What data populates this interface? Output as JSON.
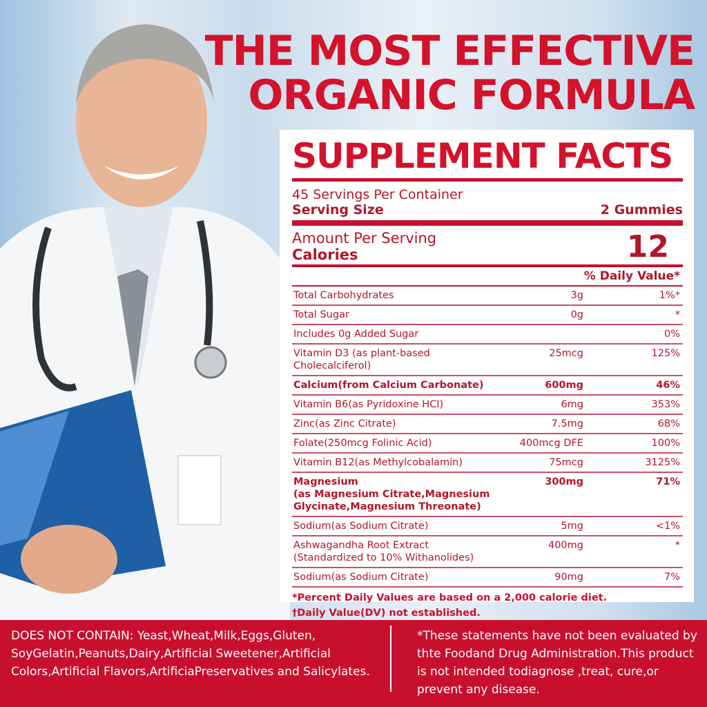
{
  "headline": [
    "THE MOST EFFECTIVE",
    "ORGANIC FORMULA"
  ],
  "panel": {
    "title": "SUPPLEMENT FACTS",
    "servings": "45 Servings Per Container",
    "serving_size_label": "Serving Size",
    "serving_size_value": "2 Gummies",
    "amount_label": "Amount Per Serving",
    "calories_label": "Calories",
    "calories_value": "12",
    "dv_header": "% Daily Value*",
    "rows": [
      {
        "name": "Total Carbohydrates",
        "amount": "3g",
        "dv": "1%*"
      },
      {
        "name": "Total Sugar",
        "amount": "0g",
        "dv": "*"
      },
      {
        "name": "Includes 0g Added Sugar",
        "amount": "",
        "dv": "0%"
      },
      {
        "name": "Vitamin D3 (as plant-based Cholecalciferol)",
        "amount": "25mcg",
        "dv": "125%"
      },
      {
        "name": "Calcium(from Calcium Carbonate)",
        "amount": "600mg",
        "dv": "46%",
        "bold": true
      },
      {
        "name": "Vitamin B6(as Pyridoxine HCl)",
        "amount": "6mg",
        "dv": "353%"
      },
      {
        "name": "Zinc(as Zinc Citrate)",
        "amount": "7.5mg",
        "dv": "68%"
      },
      {
        "name": "Folate(250mcg Folinic Acid)",
        "amount": "400mcg DFE",
        "dv": "100%"
      },
      {
        "name": "Vitamin B12(as Methylcobalamin)",
        "amount": "75mcg",
        "dv": "3125%"
      },
      {
        "name": "Magnesium\n(as Magnesium Citrate,Magnesium\nGlycinate,Magnesium Threonate)",
        "amount": "300mg",
        "dv": "71%",
        "bold": true
      },
      {
        "name": "Sodium(as Sodium Citrate)",
        "amount": "5mg",
        "dv": "<1%"
      },
      {
        "name": "Ashwagandha Root Extract\n(Standardized to 10% Withanolides)",
        "amount": "400mg",
        "dv": "*"
      },
      {
        "name": "Sodium(as Sodium Citrate)",
        "amount": "90mg",
        "dv": "7%"
      }
    ],
    "footnote1": "*Percent Daily Values are based on a 2,000 calorie diet.",
    "footnote2": "†Daily Value(DV) not established."
  },
  "band": {
    "left": "DOES NOT CONTAIN: Yeast,Wheat,Milk,Eggs,Gluten, SoyGelatin,Peanuts,Dairy,Artificial Sweetener,Artificial Colors,Artificial Flavors,ArtificiaPreservatives and Salicylates.",
    "right": "*These statements have not been evaluated by thte Foodand Drug Administration.This product is not intended todiagnose ,treat, cure,or prevent any disease."
  },
  "colors": {
    "brand_red": "#c8102e",
    "headline_red": "#d3122b",
    "text_red": "#b0172b"
  }
}
